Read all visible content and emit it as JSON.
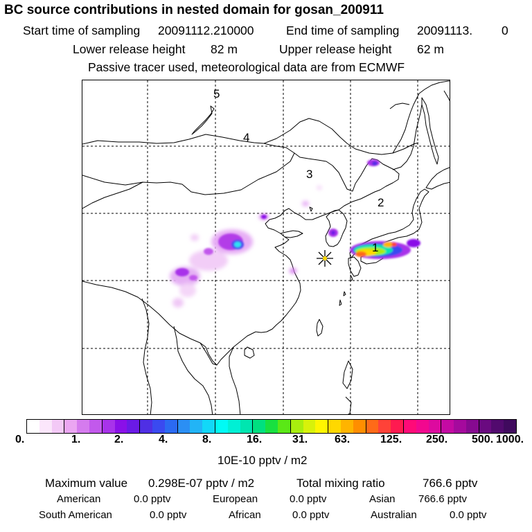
{
  "title": "BC  source contributions in nested domain for gosan_200911",
  "sampling": {
    "start_label": "Start time of sampling",
    "start_value": "20091112.210000",
    "end_label": "End time of sampling",
    "end_value": "20091113.",
    "end_extra": "0"
  },
  "release": {
    "lower_label": "Lower release height",
    "lower_value": "82 m",
    "upper_label": "Upper release height",
    "upper_value": "62 m"
  },
  "note": "Passive tracer used, meteorological data are from ECMWF",
  "map": {
    "region_labels": [
      "5",
      "4",
      "3",
      "2",
      "1"
    ],
    "receptor": "gosan",
    "colors": {
      "coast": "#000000",
      "grid": "#000000"
    }
  },
  "colorbar": {
    "ticks": [
      "0.",
      "1.",
      "2.",
      "4.",
      "8.",
      "16.",
      "31.",
      "63.",
      "125.",
      "250.",
      "500.",
      "1000."
    ],
    "colors": [
      "#ffffff",
      "#fbe6fb",
      "#f3c9f6",
      "#eba6f2",
      "#d57bee",
      "#c259ec",
      "#a833ea",
      "#8a10e8",
      "#6a1ae6",
      "#4f2fe4",
      "#3a4af0",
      "#2b6af2",
      "#2b8ff4",
      "#22b4f6",
      "#12d8f8",
      "#00fbf5",
      "#00f0d5",
      "#00e6b0",
      "#00e080",
      "#18e040",
      "#5ae816",
      "#a8ee0e",
      "#d8f20a",
      "#fff600",
      "#ffd800",
      "#ffb400",
      "#ff8e00",
      "#ff6a18",
      "#ff4238",
      "#ff1a50",
      "#ff0a78",
      "#f2088f",
      "#dd0a9f",
      "#c40aa3",
      "#a50a9d",
      "#860a90",
      "#6a0a80",
      "#520a6e",
      "#400a5e"
    ],
    "unit": "10E-10 pptv / m2"
  },
  "summary": {
    "max_label": "Maximum value",
    "max_value": "0.298E-07 pptv / m2",
    "total_label": "Total mixing ratio",
    "total_value": "766.6 pptv"
  },
  "contributions": [
    {
      "name": "American",
      "value": "0.0 pptv"
    },
    {
      "name": "European",
      "value": "0.0 pptv"
    },
    {
      "name": "Asian",
      "value": "766.6 pptv"
    },
    {
      "name": "South American",
      "value": "0.0 pptv"
    },
    {
      "name": "African",
      "value": "0.0 pptv"
    },
    {
      "name": "Australian",
      "value": "0.0 pptv"
    }
  ]
}
